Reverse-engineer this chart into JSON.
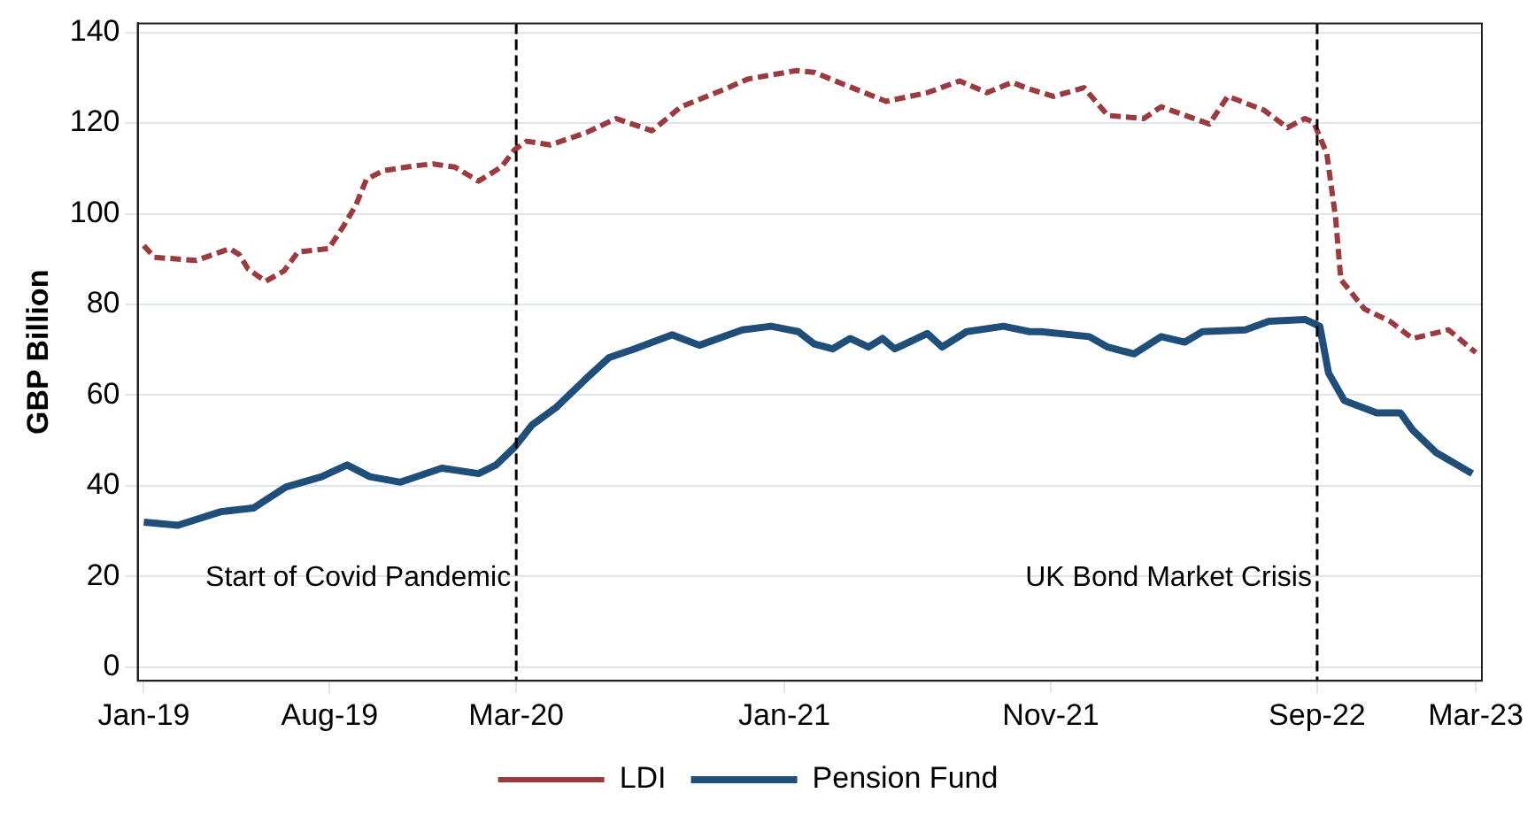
{
  "chart_data": {
    "type": "line",
    "ylabel": "GBP Billion",
    "xlim": [
      "2018-12-25",
      "2023-03-08"
    ],
    "ylim": [
      -3,
      142
    ],
    "xticks": [
      {
        "value": "2019-01-01",
        "label": "Jan-19"
      },
      {
        "value": "2019-08-01",
        "label": "Aug-19"
      },
      {
        "value": "2020-03-01",
        "label": "Mar-20"
      },
      {
        "value": "2021-01-01",
        "label": "Jan-21"
      },
      {
        "value": "2021-11-01",
        "label": "Nov-21"
      },
      {
        "value": "2022-09-01",
        "label": "Sep-22"
      },
      {
        "value": "2023-03-01",
        "label": "Mar-23"
      }
    ],
    "yticks": [
      0,
      20,
      40,
      60,
      80,
      100,
      120,
      140
    ],
    "grid": "y",
    "legend": "bottom",
    "marker": "none",
    "ref_lines": [
      {
        "axis": "x",
        "value": "2020-03-01",
        "label": "Start of Covid Pandemic",
        "color": "#000000",
        "line_style": "dashed"
      },
      {
        "axis": "x",
        "value": "2022-09-01",
        "label": "UK Bond Market Crisis",
        "color": "#000000",
        "line_style": "dashed"
      }
    ],
    "series": [
      {
        "name": "LDI",
        "color": "#9b3a3f",
        "line_style": "dashed",
        "x": [
          "2019-01-01",
          "2019-01-13",
          "2019-03-02",
          "2019-04-09",
          "2019-04-20",
          "2019-04-30",
          "2019-05-20",
          "2019-06-10",
          "2019-06-26",
          "2019-07-31",
          "2019-08-17",
          "2019-08-31",
          "2019-09-12",
          "2019-10-01",
          "2019-11-07",
          "2019-11-27",
          "2019-12-22",
          "2020-01-18",
          "2020-02-13",
          "2020-02-28",
          "2020-03-13",
          "2020-04-09",
          "2020-05-20",
          "2020-06-23",
          "2020-08-03",
          "2020-09-05",
          "2020-10-24",
          "2020-11-20",
          "2021-01-15",
          "2021-02-04",
          "2021-03-09",
          "2021-04-27",
          "2021-06-13",
          "2021-07-20",
          "2021-08-20",
          "2021-09-18",
          "2021-10-06",
          "2021-11-04",
          "2021-12-09",
          "2022-01-05",
          "2022-02-15",
          "2022-03-07",
          "2022-05-01",
          "2022-05-22",
          "2022-07-02",
          "2022-07-29",
          "2022-08-18",
          "2022-08-28",
          "2022-09-12",
          "2022-09-22",
          "2022-09-28",
          "2022-10-25",
          "2022-11-23",
          "2022-12-19",
          "2023-01-29",
          "2023-03-01"
        ],
        "values": [
          93,
          90.4,
          89.7,
          92.3,
          91,
          87.8,
          85.1,
          87.4,
          91.6,
          92.3,
          97.3,
          101.9,
          107.6,
          109.5,
          110.6,
          111,
          110.3,
          107.2,
          110.3,
          114.1,
          116,
          115.2,
          117.9,
          121,
          118.3,
          123.6,
          127.4,
          129.7,
          131.6,
          131.2,
          128.6,
          124.8,
          126.7,
          129.3,
          126.7,
          129,
          127.6,
          125.9,
          127.8,
          121.7,
          121,
          123.6,
          119.8,
          125.9,
          122.9,
          119,
          121,
          120.2,
          113.3,
          99.2,
          85.5,
          79,
          76.3,
          72.5,
          74.4,
          69.4
        ]
      },
      {
        "name": "Pension Fund",
        "color": "#1f4e79",
        "line_style": "solid",
        "x": [
          "2019-01-01",
          "2019-02-09",
          "2019-03-30",
          "2019-05-06",
          "2019-06-12",
          "2019-07-23",
          "2019-08-21",
          "2019-09-16",
          "2019-10-21",
          "2019-12-07",
          "2020-01-18",
          "2020-02-07",
          "2020-02-28",
          "2020-03-19",
          "2020-04-15",
          "2020-05-20",
          "2020-06-15",
          "2020-07-14",
          "2020-08-26",
          "2020-09-26",
          "2020-11-14",
          "2020-12-17",
          "2021-01-17",
          "2021-02-04",
          "2021-02-25",
          "2021-03-17",
          "2021-04-07",
          "2021-04-23",
          "2021-05-07",
          "2021-06-13",
          "2021-06-30",
          "2021-07-28",
          "2021-09-08",
          "2021-10-08",
          "2021-10-21",
          "2021-12-15",
          "2022-01-05",
          "2022-02-04",
          "2022-03-07",
          "2022-04-03",
          "2022-04-23",
          "2022-06-11",
          "2022-07-08",
          "2022-08-18",
          "2022-09-04",
          "2022-09-14",
          "2022-10-02",
          "2022-11-08",
          "2022-12-05",
          "2022-12-19",
          "2023-01-15",
          "2023-02-25"
        ],
        "values": [
          32,
          31.3,
          34.3,
          35.1,
          39.7,
          42,
          44.6,
          42,
          40.8,
          43.9,
          42.7,
          44.6,
          48.5,
          53.4,
          57.2,
          63.7,
          68.3,
          70.2,
          73.3,
          71,
          74.4,
          75.2,
          74,
          71.3,
          70.2,
          72.5,
          70.6,
          72.5,
          70.2,
          73.6,
          70.6,
          74,
          75.2,
          74,
          74,
          72.9,
          70.6,
          69.1,
          72.9,
          71.7,
          74,
          74.4,
          76.3,
          76.7,
          75.2,
          64.9,
          58.8,
          56.1,
          56.1,
          52.3,
          47.3,
          42.7
        ]
      }
    ]
  }
}
